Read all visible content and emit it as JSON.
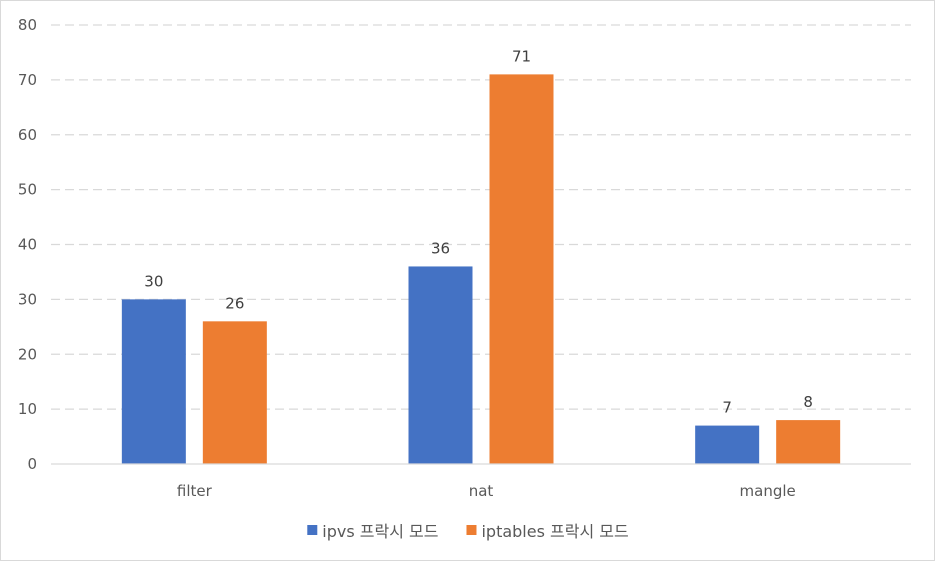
{
  "chart_data": {
    "type": "bar",
    "title": "",
    "xlabel": "",
    "ylabel": "",
    "categories": [
      "filter",
      "nat",
      "mangle"
    ],
    "series": [
      {
        "name": "ipvs 프락시 모드",
        "color": "#4472c4",
        "values": [
          30,
          36,
          7
        ]
      },
      {
        "name": "iptables 프락시 모드",
        "color": "#ed7d31",
        "values": [
          26,
          71,
          8
        ]
      }
    ],
    "ylim": [
      0,
      80
    ],
    "yticks": [
      0,
      10,
      20,
      30,
      40,
      50,
      60,
      70,
      80
    ],
    "grid": true,
    "gridline_color": "#d9d9d9",
    "axis_color": "#d9d9d9",
    "legend_position": "bottom"
  }
}
